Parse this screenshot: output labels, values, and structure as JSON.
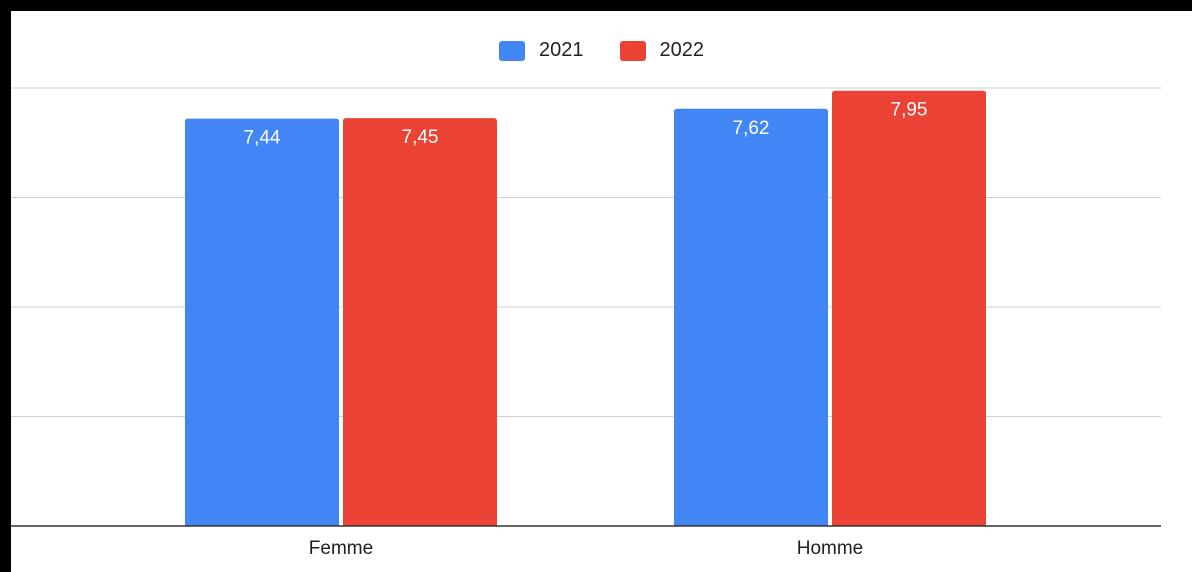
{
  "chart_data": {
    "type": "bar",
    "categories": [
      "Femme",
      "Homme"
    ],
    "series": [
      {
        "name": "2021",
        "values": [
          7.44,
          7.62
        ],
        "color": "#4285f4",
        "labels": [
          "7,44",
          "7,62"
        ]
      },
      {
        "name": "2022",
        "values": [
          7.45,
          7.95
        ],
        "color": "#ea4335",
        "labels": [
          "7,45",
          "7,95"
        ]
      }
    ],
    "ylim": [
      0,
      8
    ],
    "grid": true,
    "legend_position": "top-center",
    "gridline_color": "#d0d0d0",
    "axis_color": "#333333",
    "label_color": "#ffffff"
  }
}
